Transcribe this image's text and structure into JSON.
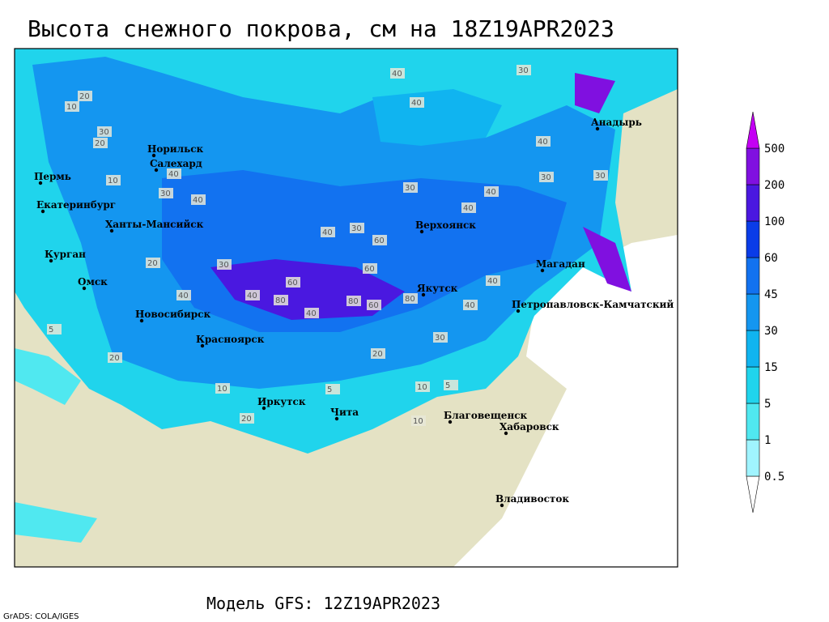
{
  "title": "Высота снежного покрова, см на 18Z19APR2023",
  "footer": "Модель GFS: 12Z19APR2023",
  "credit": "GrADS: COLA/IGES",
  "cities": [
    "Пермь",
    "Екатеринбург",
    "Ханты-Мансийск",
    "Курган",
    "Омск",
    "Новосибирск",
    "Красноярск",
    "Иркутск",
    "Чита",
    "Норильск",
    "Салехард",
    "Верхоянск",
    "Якутск",
    "Магадан",
    "Петропавловск-Камчатский",
    "Анадырь",
    "Благовещенск",
    "Хабаровск",
    "Владивосток"
  ],
  "contour_labels": [
    20,
    10,
    30,
    20,
    40,
    30,
    40,
    10,
    20,
    30,
    40,
    40,
    60,
    80,
    60,
    80,
    40,
    30,
    40,
    60,
    40,
    40,
    30,
    40,
    30,
    40,
    40,
    30,
    20,
    10,
    10,
    5,
    5,
    10,
    20,
    20,
    5,
    40,
    30,
    60,
    80,
    40,
    30
  ],
  "legend": {
    "levels": [
      0.5,
      1,
      5,
      15,
      30,
      45,
      60,
      100,
      200,
      500
    ],
    "colors": [
      "#ffffff",
      "#a0f4ff",
      "#50e8f0",
      "#20d4ec",
      "#10b4f0",
      "#1496f0",
      "#1272f0",
      "#0a3ce8",
      "#4a18e0",
      "#8010e0",
      "#c400f4"
    ]
  }
}
